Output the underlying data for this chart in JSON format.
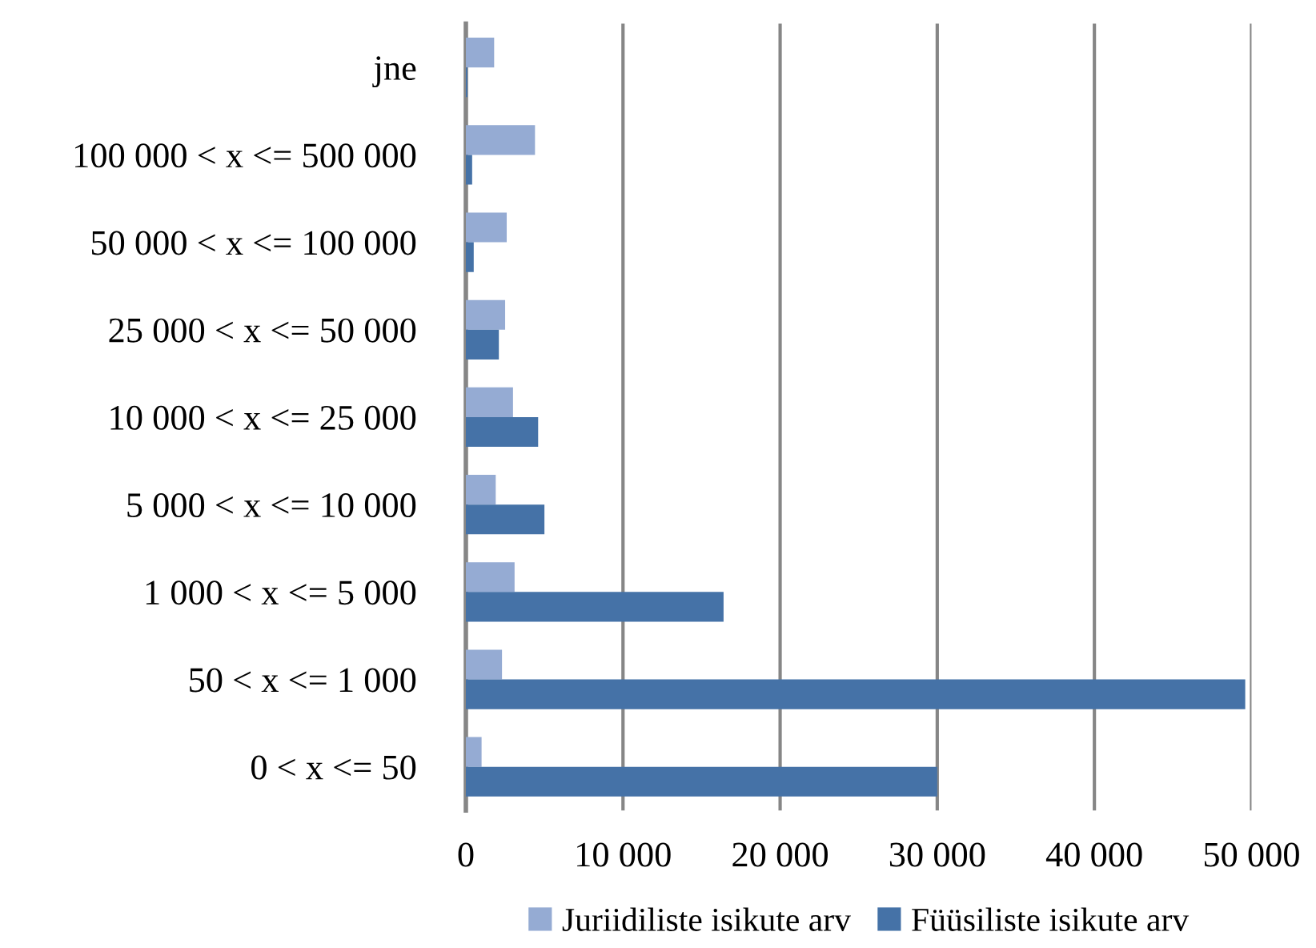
{
  "chart_data": {
    "type": "bar",
    "orientation": "horizontal",
    "categories": [
      "jne",
      "100 000 < x <= 500 000",
      "50 000 < x <= 100 000",
      "25 000 < x <= 50 000",
      "10 000 < x <= 25 000",
      "5 000 < x <= 10 000",
      "1 000 < x <= 5 000",
      "50 < x <= 1 000",
      "0 < x <= 50"
    ],
    "series": [
      {
        "name": "Juriidiliste isikute arv",
        "color": "#95abd3",
        "values": [
          1800,
          4400,
          2600,
          2500,
          3000,
          1900,
          3100,
          2300,
          1000
        ]
      },
      {
        "name": "Füüsiliste isikute arv",
        "color": "#4572a7",
        "values": [
          100,
          400,
          500,
          2100,
          4600,
          5000,
          16400,
          49600,
          30000
        ]
      }
    ],
    "xlim": [
      0,
      50000
    ],
    "xticks": [
      {
        "value": 0,
        "label": "0"
      },
      {
        "value": 10000,
        "label": "10 000"
      },
      {
        "value": 20000,
        "label": "20 000"
      },
      {
        "value": 30000,
        "label": "30 000"
      },
      {
        "value": 40000,
        "label": "40 000"
      },
      {
        "value": 50000,
        "label": "50 000"
      }
    ],
    "grid": "x",
    "legend": "bottom"
  }
}
